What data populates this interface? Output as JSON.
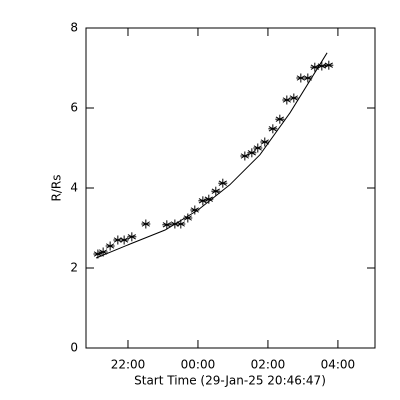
{
  "chart_data": {
    "type": "scatter",
    "xlabel": "Start Time (29-Jan-25 20:46:47)",
    "ylabel": "R/Rs",
    "xlim": [
      20.8,
      29.06
    ],
    "ylim": [
      0,
      8
    ],
    "xticks": [
      {
        "value": 22,
        "label": "22:00"
      },
      {
        "value": 24,
        "label": "00:00"
      },
      {
        "value": 26,
        "label": "02:00"
      },
      {
        "value": 28,
        "label": "04:00"
      }
    ],
    "yticks": [
      0,
      2,
      4,
      6,
      8
    ],
    "series": [
      {
        "style": "marker",
        "color": "#000000",
        "x": [
          21.14,
          21.29,
          21.49,
          21.71,
          21.89,
          22.11,
          22.51,
          23.11,
          23.34,
          23.51,
          23.71,
          23.91,
          24.14,
          24.31,
          24.51,
          24.71,
          25.34,
          25.54,
          25.71,
          25.91,
          26.14,
          26.34,
          26.54,
          26.74,
          26.94,
          27.14,
          27.34,
          27.54,
          27.74
        ],
        "values": [
          2.35,
          2.4,
          2.55,
          2.7,
          2.7,
          2.78,
          3.1,
          3.08,
          3.1,
          3.1,
          3.25,
          3.45,
          3.68,
          3.72,
          3.92,
          4.12,
          4.8,
          4.88,
          5.0,
          5.15,
          5.48,
          5.72,
          6.2,
          6.25,
          6.75,
          6.75,
          7.02,
          7.05,
          7.07
        ]
      },
      {
        "style": "line",
        "color": "#000000",
        "x": [
          21.09,
          22.06,
          23.06,
          24.0,
          24.91,
          25.77,
          26.63,
          27.69
        ],
        "values": [
          2.25,
          2.6,
          2.95,
          3.45,
          4.08,
          4.83,
          5.88,
          7.38
        ]
      }
    ]
  }
}
